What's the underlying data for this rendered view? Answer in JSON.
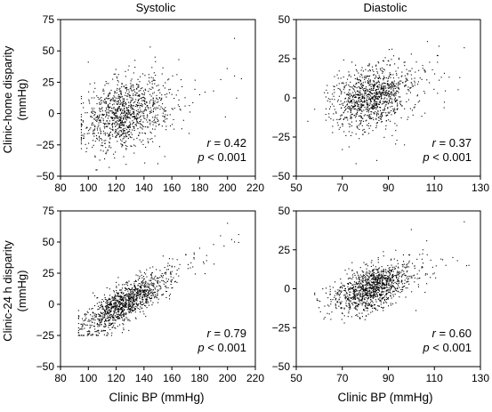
{
  "figure": {
    "column_titles": [
      "Systolic",
      "Diastolic"
    ],
    "row_ylabels": [
      {
        "line1": "Clinic-home disparity",
        "line2": "(mmHg)"
      },
      {
        "line1": "Clinic-24 h disparity",
        "line2": "(mmHg)"
      }
    ],
    "xlabel": "Clinic BP (mmHg)"
  },
  "chart_data": [
    {
      "type": "scatter",
      "title": "Systolic",
      "xlabel": "",
      "ylabel": "Clinic-home disparity (mmHg)",
      "xlim": [
        80,
        220
      ],
      "ylim": [
        -50,
        75
      ],
      "xticks": [
        "80",
        "100",
        "120",
        "140",
        "160",
        "180",
        "200",
        "220"
      ],
      "yticks": [
        "75",
        "50",
        "25",
        "0",
        "−25",
        "−50"
      ],
      "stats": {
        "r": "0.42",
        "p": "0.001"
      },
      "cloud": {
        "n": 1100,
        "x_mean": 125,
        "x_sd": 15,
        "x_min": 95,
        "x_max": 210,
        "slope": 0.24,
        "residual_sd": 13.5,
        "y_min": -45,
        "y_max": 62,
        "seed": 11
      },
      "points": [
        [
          205,
          60
        ],
        [
          100,
          41
        ],
        [
          148,
          45
        ],
        [
          205,
          30
        ],
        [
          165,
          43
        ],
        [
          180,
          15
        ],
        [
          190,
          18
        ],
        [
          95,
          -28
        ],
        [
          150,
          -40
        ],
        [
          115,
          -43
        ]
      ]
    },
    {
      "type": "scatter",
      "title": "Diastolic",
      "xlabel": "",
      "ylabel": "",
      "xlim": [
        50,
        130
      ],
      "ylim": [
        -50,
        50
      ],
      "xticks": [
        "50",
        "70",
        "90",
        "110",
        "130"
      ],
      "yticks": [
        "50",
        "25",
        "0",
        "−25",
        "−50"
      ],
      "stats": {
        "r": "0.37",
        "p": "0.001"
      },
      "cloud": {
        "n": 1100,
        "x_mean": 82,
        "x_sd": 8,
        "x_min": 58,
        "x_max": 125,
        "slope": 0.33,
        "residual_sd": 9.5,
        "y_min": -42,
        "y_max": 40,
        "seed": 23
      },
      "points": [
        [
          123,
          32
        ],
        [
          107,
          36
        ],
        [
          112,
          33
        ],
        [
          76,
          -42
        ],
        [
          85,
          -40
        ],
        [
          70,
          -33
        ],
        [
          97,
          -30
        ],
        [
          55,
          -15
        ],
        [
          100,
          28
        ],
        [
          121,
          13
        ]
      ]
    },
    {
      "type": "scatter",
      "title": "",
      "xlabel": "Clinic BP (mmHg)",
      "ylabel": "Clinic-24 h disparity (mmHg)",
      "xlim": [
        80,
        220
      ],
      "ylim": [
        -50,
        75
      ],
      "xticks": [
        "80",
        "100",
        "120",
        "140",
        "160",
        "180",
        "200",
        "220"
      ],
      "yticks": [
        "75",
        "50",
        "25",
        "0",
        "−25",
        "−50"
      ],
      "stats": {
        "r": "0.79",
        "p": "0.001"
      },
      "cloud": {
        "n": 1200,
        "x_mean": 125,
        "x_sd": 15,
        "x_min": 93,
        "x_max": 208,
        "slope": 0.6,
        "residual_sd": 7.5,
        "y_min": -25,
        "y_max": 66,
        "seed": 37
      },
      "points": [
        [
          200,
          65
        ],
        [
          205,
          50
        ],
        [
          190,
          48
        ],
        [
          195,
          55
        ],
        [
          203,
          52
        ],
        [
          170,
          40
        ],
        [
          175,
          30
        ],
        [
          185,
          35
        ],
        [
          160,
          30
        ],
        [
          180,
          45
        ]
      ]
    },
    {
      "type": "scatter",
      "title": "",
      "xlabel": "Clinic BP (mmHg)",
      "ylabel": "",
      "xlim": [
        50,
        130
      ],
      "ylim": [
        -50,
        50
      ],
      "xticks": [
        "50",
        "70",
        "90",
        "110",
        "130"
      ],
      "yticks": [
        "50",
        "25",
        "0",
        "−25",
        "−50"
      ],
      "stats": {
        "r": "0.60",
        "p": "0.001"
      },
      "cloud": {
        "n": 1200,
        "x_mean": 82,
        "x_sd": 8,
        "x_min": 58,
        "x_max": 124,
        "slope": 0.5,
        "residual_sd": 6.5,
        "y_min": -22,
        "y_max": 45,
        "seed": 53
      },
      "points": [
        [
          123,
          43
        ],
        [
          118,
          20
        ],
        [
          115,
          15
        ],
        [
          120,
          18
        ],
        [
          100,
          38
        ],
        [
          105,
          25
        ],
        [
          88,
          -12
        ],
        [
          110,
          10
        ],
        [
          125,
          15
        ],
        [
          102,
          -14
        ]
      ]
    }
  ]
}
